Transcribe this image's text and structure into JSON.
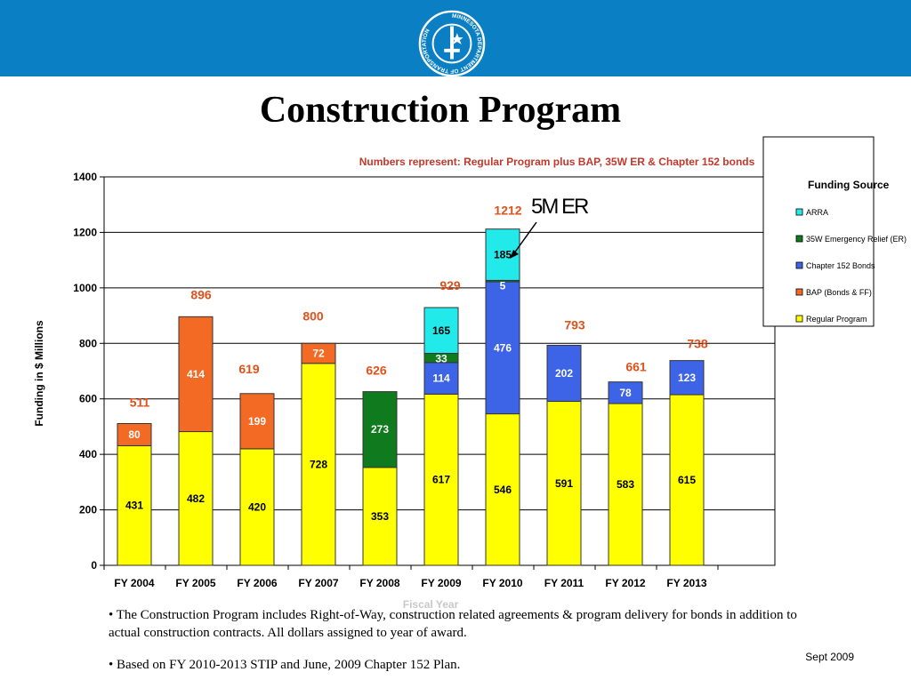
{
  "slide": {
    "title": "Construction Program",
    "date": "Sept 2009",
    "bullets": [
      "• The Construction Program includes Right-of-Way, construction related agreements & program delivery for bonds in addition to actual construction contracts.  All dollars assigned to year of award.",
      "• Based on FY 2010-2013 STIP and June, 2009 Chapter 152 Plan."
    ]
  },
  "logo": {
    "ring_text": "MINNESOTA DEPARTMENT OF TRANSPORTATION",
    "colors": {
      "band": "#0a7fc4",
      "emblem": "#ffffff"
    }
  },
  "chart_data": {
    "type": "bar",
    "stacked": true,
    "subtitle": "Numbers represent: Regular Program plus BAP, 35W ER & Chapter 152 bonds",
    "xlabel": "Fiscal Year",
    "ylabel": "Funding in $ Millions",
    "ylim": [
      0,
      1400
    ],
    "yticks": [
      0,
      200,
      400,
      600,
      800,
      1000,
      1200,
      1400
    ],
    "grid": true,
    "legend": {
      "title": "Funding Source",
      "position": "top-right"
    },
    "categories": [
      "FY 2004",
      "FY 2005",
      "FY 2006",
      "FY 2007",
      "FY 2008",
      "FY 2009",
      "FY 2010",
      "FY 2011",
      "FY 2012",
      "FY 2013"
    ],
    "series": [
      {
        "name": "Regular Program",
        "color": "#ffff00",
        "values": [
          431,
          482,
          420,
          728,
          353,
          617,
          546,
          591,
          583,
          615
        ],
        "labels": [
          "431",
          "482",
          "420",
          "728",
          "353",
          "617",
          "546",
          "591",
          "583",
          "615"
        ],
        "label_color": "#000000"
      },
      {
        "name": "BAP (Bonds & FF)",
        "color": "#f26a24",
        "values": [
          80,
          414,
          199,
          72,
          0,
          0,
          0,
          0,
          0,
          0
        ],
        "labels": [
          "80",
          "414",
          "199",
          "72",
          "",
          "",
          "",
          "",
          "",
          ""
        ],
        "label_color": "#ffffff"
      },
      {
        "name": "Chapter 152 Bonds",
        "color": "#3d63e6",
        "values": [
          0,
          0,
          0,
          0,
          0,
          114,
          476,
          202,
          78,
          123
        ],
        "labels": [
          "",
          "",
          "",
          "",
          "",
          "114",
          "476",
          "202",
          "78",
          "123"
        ],
        "label_color": "#ffffff"
      },
      {
        "name": "35W Emergency Relief (ER)",
        "color": "#0f7a1e",
        "values": [
          0,
          0,
          0,
          0,
          273,
          33,
          5,
          0,
          0,
          0
        ],
        "labels": [
          "",
          "",
          "",
          "",
          "273",
          "33",
          "5",
          "",
          "",
          ""
        ],
        "label_color": "#ffffff"
      },
      {
        "name": "ARRA",
        "color": "#22eaea",
        "values": [
          0,
          0,
          0,
          0,
          0,
          165,
          185,
          0,
          0,
          0
        ],
        "labels": [
          "",
          "",
          "",
          "",
          "",
          "165",
          "185",
          "",
          "",
          ""
        ],
        "label_color": "#000000"
      }
    ],
    "totals": [
      "511",
      "896",
      "619",
      "800",
      "626",
      "929",
      "1212",
      "793",
      "661",
      "738"
    ],
    "annotation": {
      "text": "5M ER",
      "category": "FY 2010",
      "points_to": "35W Emergency Relief (ER)"
    },
    "colors": {
      "accent": "#c0392b",
      "total_label": "#e0511b",
      "subtitle": "#c0392b"
    }
  }
}
